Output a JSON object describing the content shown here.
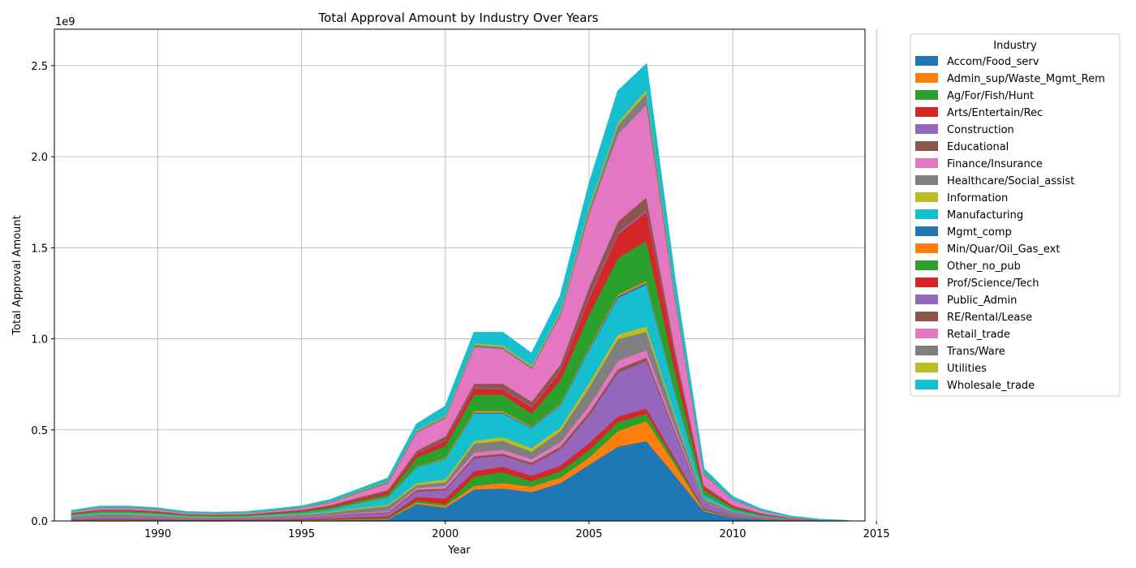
{
  "chart_data": {
    "type": "area",
    "stacked": true,
    "title": "Total Approval Amount by Industry Over Years",
    "xlabel": "Year",
    "ylabel": "Total Approval Amount",
    "y_offset_label": "1e9",
    "xlim": [
      1986.4,
      2014.6
    ],
    "ylim": [
      0,
      2.7
    ],
    "xticks": [
      1990,
      1995,
      2000,
      2005,
      2010,
      2015
    ],
    "yticks": [
      0,
      0.5,
      1.0,
      1.5,
      2.0,
      2.5
    ],
    "ytick_labels": [
      "0.0",
      "0.5",
      "1.0",
      "1.5",
      "2.0",
      "2.5"
    ],
    "grid": true,
    "legend": {
      "title": "Industry",
      "placement": "outside-upper-right"
    },
    "x": [
      1987,
      1988,
      1989,
      1990,
      1991,
      1992,
      1993,
      1994,
      1995,
      1996,
      1997,
      1998,
      1999,
      2000,
      2001,
      2002,
      2003,
      2004,
      2005,
      2006,
      2007,
      2008,
      2009,
      2010,
      2011,
      2012,
      2013,
      2014
    ],
    "series": [
      {
        "name": "Accom/Food_serv",
        "color": "#1f77b4",
        "values": [
          0.004,
          0.005,
          0.005,
          0.004,
          0.003,
          0.002,
          0.003,
          0.003,
          0.004,
          0.005,
          0.008,
          0.01,
          0.095,
          0.075,
          0.175,
          0.18,
          0.16,
          0.21,
          0.31,
          0.41,
          0.44,
          0.25,
          0.055,
          0.02,
          0.01,
          0.003,
          0.001,
          0.0005
        ]
      },
      {
        "name": "Admin_sup/Waste_Mgmt_Rem",
        "color": "#ff7f0e",
        "values": [
          0.001,
          0.001,
          0.001,
          0.001,
          0.001,
          0.001,
          0.001,
          0.001,
          0.002,
          0.002,
          0.003,
          0.003,
          0.008,
          0.01,
          0.02,
          0.03,
          0.03,
          0.03,
          0.04,
          0.085,
          0.11,
          0.06,
          0.005,
          0.002,
          0.001,
          0.001,
          0,
          0
        ]
      },
      {
        "name": "Ag/For/Fish/Hunt",
        "color": "#2ca02c",
        "values": [
          0.002,
          0.003,
          0.003,
          0.003,
          0.002,
          0.002,
          0.002,
          0.002,
          0.002,
          0.003,
          0.004,
          0.005,
          0.01,
          0.01,
          0.05,
          0.06,
          0.03,
          0.035,
          0.04,
          0.05,
          0.04,
          0.02,
          0.005,
          0.002,
          0.001,
          0.001,
          0,
          0
        ]
      },
      {
        "name": "Arts/Entertain/Rec",
        "color": "#d62728",
        "values": [
          0.002,
          0.003,
          0.003,
          0.002,
          0.002,
          0.002,
          0.002,
          0.003,
          0.004,
          0.005,
          0.007,
          0.008,
          0.02,
          0.03,
          0.03,
          0.03,
          0.03,
          0.03,
          0.04,
          0.03,
          0.03,
          0.015,
          0.004,
          0.002,
          0.001,
          0.001,
          0,
          0
        ]
      },
      {
        "name": "Construction",
        "color": "#9467bd",
        "values": [
          0.006,
          0.008,
          0.008,
          0.006,
          0.004,
          0.004,
          0.004,
          0.006,
          0.008,
          0.012,
          0.016,
          0.02,
          0.03,
          0.045,
          0.07,
          0.06,
          0.06,
          0.09,
          0.15,
          0.24,
          0.26,
          0.14,
          0.03,
          0.015,
          0.006,
          0.003,
          0.001,
          0
        ]
      },
      {
        "name": "Educational",
        "color": "#8c564b",
        "values": [
          0.001,
          0.002,
          0.002,
          0.002,
          0.001,
          0.001,
          0.001,
          0.002,
          0.002,
          0.003,
          0.004,
          0.004,
          0.01,
          0.01,
          0.012,
          0.012,
          0.012,
          0.015,
          0.02,
          0.02,
          0.02,
          0.01,
          0.003,
          0.001,
          0.001,
          0,
          0,
          0
        ]
      },
      {
        "name": "Finance/Insurance",
        "color": "#e377c2",
        "values": [
          0.002,
          0.003,
          0.003,
          0.003,
          0.002,
          0.002,
          0.002,
          0.003,
          0.003,
          0.004,
          0.006,
          0.008,
          0.01,
          0.015,
          0.02,
          0.02,
          0.02,
          0.025,
          0.035,
          0.045,
          0.04,
          0.02,
          0.004,
          0.002,
          0.001,
          0,
          0,
          0
        ]
      },
      {
        "name": "Healthcare/Social_assist",
        "color": "#7f7f7f",
        "values": [
          0.008,
          0.012,
          0.012,
          0.01,
          0.007,
          0.006,
          0.006,
          0.008,
          0.01,
          0.014,
          0.02,
          0.025,
          0.015,
          0.02,
          0.05,
          0.05,
          0.04,
          0.06,
          0.1,
          0.12,
          0.1,
          0.05,
          0.015,
          0.008,
          0.004,
          0.002,
          0.001,
          0
        ]
      },
      {
        "name": "Information",
        "color": "#bcbd22",
        "values": [
          0.002,
          0.003,
          0.003,
          0.003,
          0.002,
          0.002,
          0.002,
          0.003,
          0.003,
          0.004,
          0.006,
          0.007,
          0.012,
          0.015,
          0.015,
          0.02,
          0.02,
          0.02,
          0.025,
          0.025,
          0.03,
          0.015,
          0.004,
          0.002,
          0.001,
          0,
          0,
          0
        ]
      },
      {
        "name": "Manufacturing",
        "color": "#17becf",
        "values": [
          0.006,
          0.008,
          0.008,
          0.007,
          0.005,
          0.004,
          0.005,
          0.006,
          0.008,
          0.012,
          0.025,
          0.04,
          0.085,
          0.11,
          0.15,
          0.13,
          0.11,
          0.12,
          0.18,
          0.2,
          0.23,
          0.12,
          0.02,
          0.01,
          0.005,
          0.002,
          0.001,
          0
        ]
      },
      {
        "name": "Mgmt_comp",
        "color": "#1f77b4",
        "values": [
          0,
          0,
          0,
          0,
          0,
          0,
          0,
          0,
          0,
          0,
          0,
          0,
          0.002,
          0.003,
          0.005,
          0.005,
          0.005,
          0.005,
          0.008,
          0.01,
          0.01,
          0.005,
          0.001,
          0,
          0,
          0,
          0,
          0
        ]
      },
      {
        "name": "Min/Quar/Oil_Gas_ext",
        "color": "#ff7f0e",
        "values": [
          0.001,
          0.001,
          0.001,
          0.001,
          0.001,
          0.001,
          0.001,
          0.001,
          0.001,
          0.001,
          0.002,
          0.002,
          0.003,
          0.005,
          0.008,
          0.008,
          0.005,
          0.005,
          0.008,
          0.01,
          0.01,
          0.005,
          0.001,
          0,
          0,
          0,
          0,
          0
        ]
      },
      {
        "name": "Other_no_pub",
        "color": "#2ca02c",
        "values": [
          0.005,
          0.007,
          0.007,
          0.006,
          0.004,
          0.004,
          0.004,
          0.005,
          0.007,
          0.01,
          0.012,
          0.015,
          0.05,
          0.065,
          0.09,
          0.09,
          0.07,
          0.13,
          0.18,
          0.2,
          0.22,
          0.11,
          0.025,
          0.012,
          0.006,
          0.002,
          0.001,
          0
        ]
      },
      {
        "name": "Prof/Science/Tech",
        "color": "#d62728",
        "values": [
          0.003,
          0.004,
          0.004,
          0.004,
          0.003,
          0.003,
          0.003,
          0.004,
          0.005,
          0.007,
          0.01,
          0.015,
          0.02,
          0.03,
          0.035,
          0.03,
          0.035,
          0.05,
          0.09,
          0.13,
          0.16,
          0.08,
          0.015,
          0.008,
          0.004,
          0.002,
          0.001,
          0
        ]
      },
      {
        "name": "Public_Admin",
        "color": "#9467bd",
        "values": [
          0,
          0,
          0,
          0,
          0,
          0,
          0,
          0,
          0,
          0,
          0,
          0,
          0.002,
          0.003,
          0.005,
          0.005,
          0.005,
          0.005,
          0.01,
          0.01,
          0.01,
          0.005,
          0.001,
          0,
          0,
          0,
          0,
          0
        ]
      },
      {
        "name": "RE/Rental/Lease",
        "color": "#8c564b",
        "values": [
          0.003,
          0.004,
          0.004,
          0.003,
          0.002,
          0.002,
          0.002,
          0.003,
          0.004,
          0.006,
          0.008,
          0.01,
          0.015,
          0.02,
          0.02,
          0.025,
          0.025,
          0.03,
          0.05,
          0.06,
          0.07,
          0.035,
          0.008,
          0.004,
          0.002,
          0.001,
          0,
          0
        ]
      },
      {
        "name": "Retail_trade",
        "color": "#e377c2",
        "values": [
          0.006,
          0.009,
          0.009,
          0.008,
          0.006,
          0.005,
          0.006,
          0.007,
          0.01,
          0.015,
          0.025,
          0.035,
          0.1,
          0.1,
          0.2,
          0.19,
          0.18,
          0.27,
          0.4,
          0.48,
          0.51,
          0.27,
          0.06,
          0.03,
          0.015,
          0.006,
          0.002,
          0.0005
        ]
      },
      {
        "name": "Trans/Ware",
        "color": "#7f7f7f",
        "values": [
          0.002,
          0.003,
          0.003,
          0.003,
          0.002,
          0.002,
          0.002,
          0.003,
          0.003,
          0.005,
          0.007,
          0.01,
          0.01,
          0.01,
          0.015,
          0.012,
          0.012,
          0.015,
          0.03,
          0.05,
          0.06,
          0.03,
          0.01,
          0.004,
          0.002,
          0.001,
          0,
          0
        ]
      },
      {
        "name": "Utilities",
        "color": "#bcbd22",
        "values": [
          0.001,
          0.001,
          0.001,
          0.001,
          0.001,
          0.001,
          0.001,
          0.001,
          0.001,
          0.002,
          0.003,
          0.003,
          0.005,
          0.005,
          0.008,
          0.008,
          0.008,
          0.01,
          0.015,
          0.015,
          0.02,
          0.01,
          0.002,
          0.001,
          0,
          0,
          0,
          0
        ]
      },
      {
        "name": "Wholesale_trade",
        "color": "#17becf",
        "values": [
          0.003,
          0.004,
          0.004,
          0.004,
          0.003,
          0.003,
          0.003,
          0.004,
          0.005,
          0.007,
          0.01,
          0.015,
          0.03,
          0.049,
          0.057,
          0.07,
          0.063,
          0.08,
          0.12,
          0.17,
          0.14,
          0.07,
          0.018,
          0.01,
          0.005,
          0.002,
          0.001,
          0.0005
        ]
      }
    ]
  }
}
